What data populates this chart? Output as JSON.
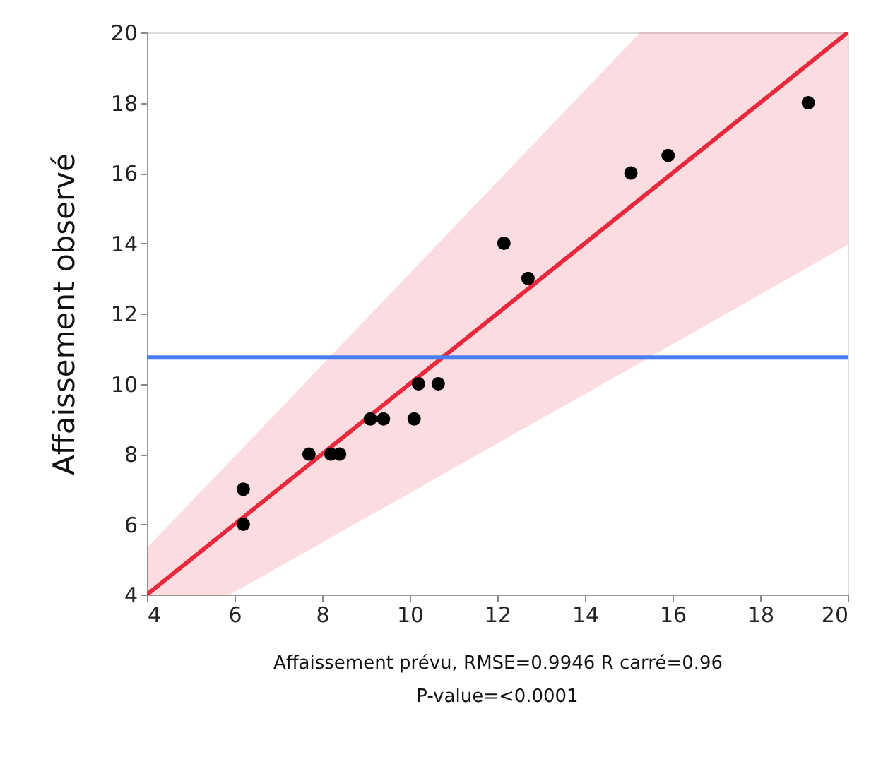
{
  "chart_data": {
    "type": "scatter",
    "xlabel": "Affaissement prévu, RMSE=0.9946  R carré=0.96",
    "ylabel": "Affaissement observé",
    "annotations": [
      "P-value=<0.0001"
    ],
    "xlim": [
      4,
      20
    ],
    "ylim": [
      4,
      20
    ],
    "xticks": [
      4,
      6,
      8,
      10,
      12,
      14,
      16,
      18,
      20
    ],
    "yticks": [
      4,
      6,
      8,
      10,
      12,
      14,
      16,
      18,
      20
    ],
    "grid": false,
    "marker": "circle",
    "series": [
      {
        "type": "line",
        "marker": "none",
        "color": "#e8283c",
        "x": [
          4,
          5.9,
          15.26,
          20
        ],
        "values": [
          4,
          5.9,
          15.26,
          20
        ],
        "lower": [
          4,
          4,
          10.6,
          13.96
        ],
        "upper": [
          5.33,
          7.8,
          20,
          20
        ]
      },
      {
        "type": "scatter",
        "color": "#000000",
        "x": [
          6.2,
          6.2,
          7.7,
          8.2,
          8.4,
          9.1,
          9.4,
          10.1,
          10.2,
          10.65,
          12.15,
          12.7,
          15.05,
          15.9,
          19.1
        ],
        "values": [
          7,
          6,
          8,
          8,
          8,
          9,
          9,
          9,
          10,
          10,
          14,
          13,
          16,
          16.5,
          18
        ]
      }
    ],
    "ref_lines": [
      {
        "axis": "y",
        "value": 10.75,
        "color": "#4a7ef0"
      }
    ]
  }
}
